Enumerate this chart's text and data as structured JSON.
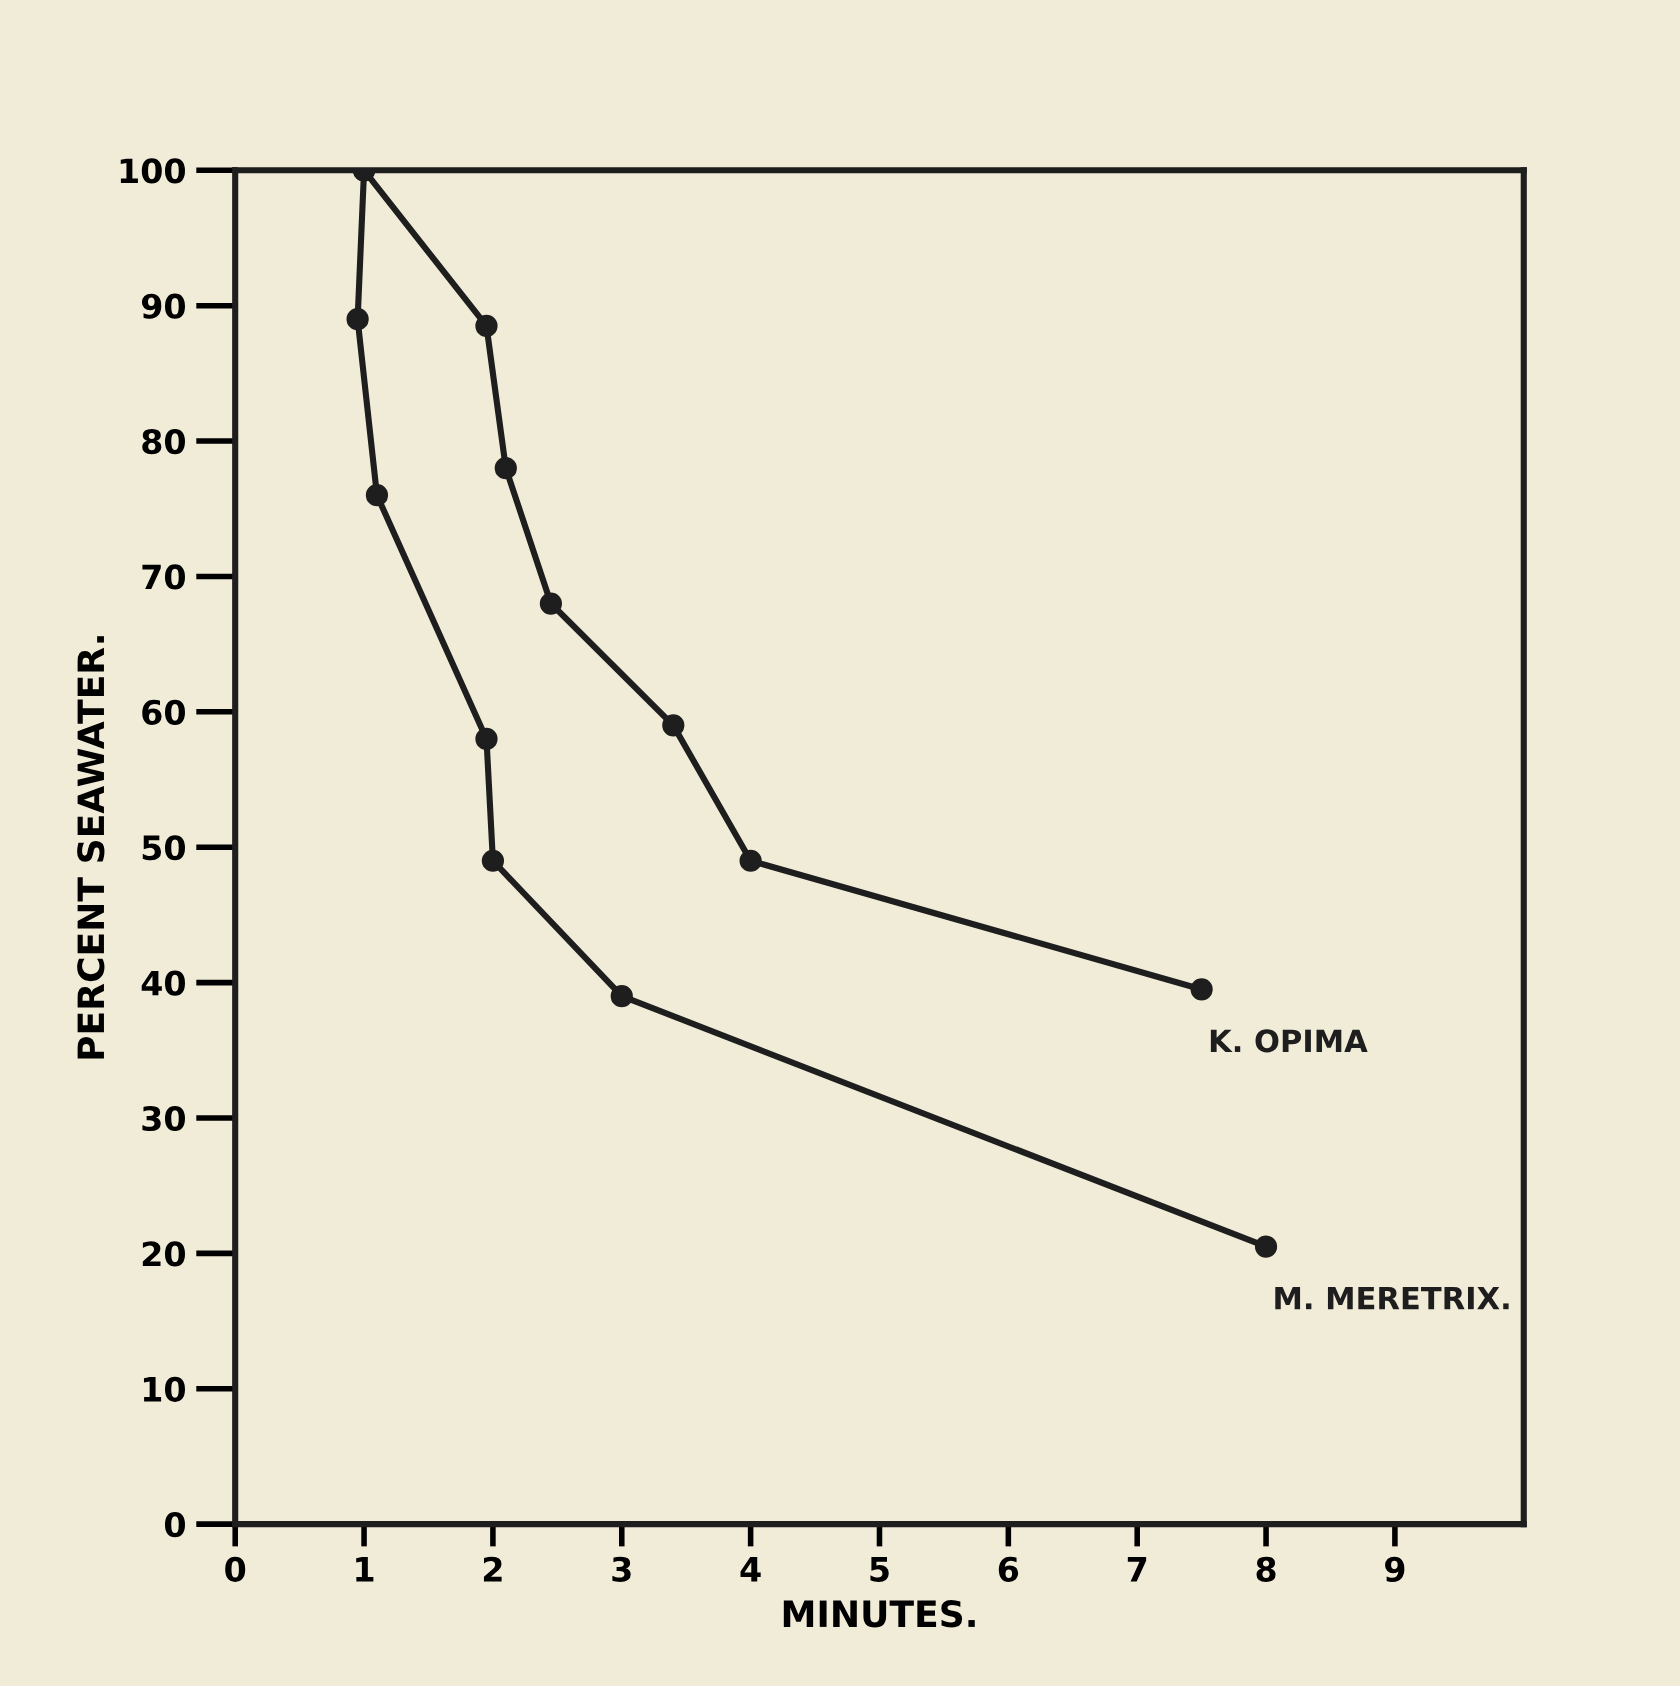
{
  "chart_data": {
    "type": "line",
    "xlabel": "MINUTES.",
    "ylabel": "PERCENT SEAWATER.",
    "xlim": [
      0,
      10
    ],
    "xticks": [
      0,
      1,
      2,
      3,
      4,
      5,
      6,
      7,
      8,
      9
    ],
    "ylim": [
      0,
      100
    ],
    "yticks": [
      0,
      10,
      20,
      30,
      40,
      50,
      60,
      70,
      80,
      90,
      100
    ],
    "grid": false,
    "legend": false,
    "marker": "circle",
    "line_style": "solid",
    "series": [
      {
        "name": "K. OPIMA",
        "color": "#1e1e1e",
        "x": [
          1.0,
          1.95,
          2.1,
          2.45,
          3.4,
          4.0,
          7.5
        ],
        "values": [
          100,
          88.5,
          78,
          68,
          59,
          49,
          39.5
        ]
      },
      {
        "name": "M. MERETRIX.",
        "color": "#1e1e1e",
        "x": [
          1.0,
          0.95,
          1.1,
          1.95,
          2.0,
          3.0,
          8.0
        ],
        "values": [
          100,
          89,
          76,
          58,
          49,
          39,
          20.5
        ]
      }
    ]
  }
}
